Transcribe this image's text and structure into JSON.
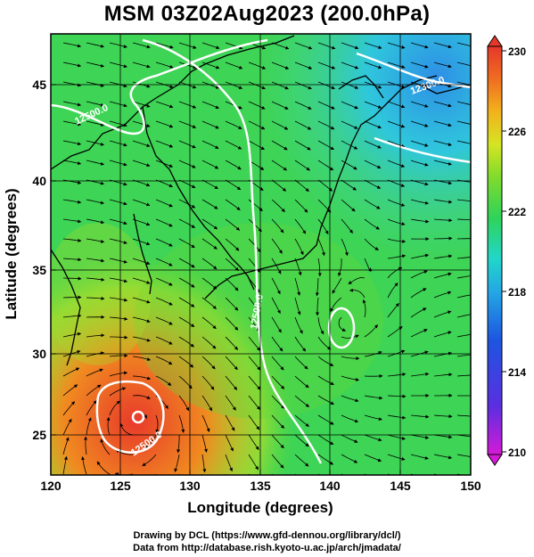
{
  "title": "MSM 03Z02Aug2023 (200.0hPa)",
  "xlabel": "Longitude (degrees)",
  "ylabel": "Latitude  (degrees)",
  "x_ticks": [
    "120",
    "125",
    "130",
    "135",
    "140",
    "145",
    "150"
  ],
  "y_ticks": [
    "25",
    "30",
    "35",
    "40",
    "45"
  ],
  "colorbar_ticks": [
    "230",
    "226",
    "222",
    "218",
    "214",
    "210"
  ],
  "contour_labels": [
    "12300.0",
    "12500.0",
    "12500.0",
    "12500.0"
  ],
  "footer": {
    "line1": "Drawing by DCL (https://www.gfd-dennou.org/library/dcl/)",
    "line2": "Data from http://database.rish.kyoto-u.ac.jp/arch/jmadata/"
  },
  "map_data": {
    "variable_range": [
      210,
      230
    ],
    "x_range": [
      120,
      150
    ],
    "y_range": [
      22.5,
      48
    ],
    "x_tick_values": [
      120,
      125,
      130,
      135,
      140,
      145,
      150
    ],
    "y_tick_values": [
      25,
      30,
      35,
      40,
      45
    ],
    "colorbar_tick_values": [
      230,
      226,
      222,
      218,
      214,
      210
    ],
    "colors": {
      "high": "#e8412a",
      "warm": "#f2a31c",
      "mid": "#c9e31f",
      "green": "#36d14b",
      "cyan": "#27c9d8",
      "blue": "#1d6fe0",
      "low": "#d51ad7"
    }
  }
}
